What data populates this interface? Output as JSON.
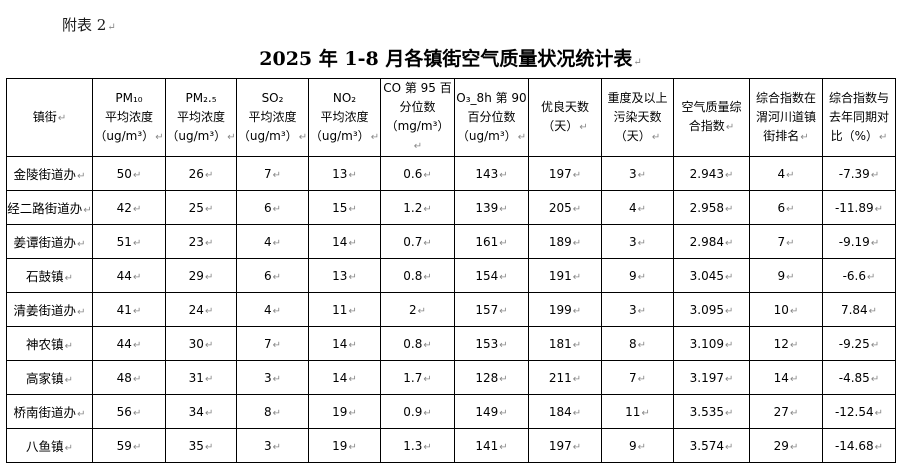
{
  "appendix_label": "附表 2",
  "title": "2025 年 1-8 月各镇街空气质量状况统计表",
  "table": {
    "headers": [
      [
        "镇街"
      ],
      [
        "PM₁₀",
        "平均浓度",
        "（ug/m³）"
      ],
      [
        "PM₂.₅",
        "平均浓度",
        "（ug/m³）"
      ],
      [
        "SO₂",
        "平均浓度",
        "（ug/m³）"
      ],
      [
        "NO₂",
        "平均浓度",
        "（ug/m³）"
      ],
      [
        "CO 第 95 百",
        "分位数",
        "（mg/m³）"
      ],
      [
        "O₃_8h 第 90",
        "百分位数",
        "（ug/m³）"
      ],
      [
        "优良天数",
        "（天）"
      ],
      [
        "重度及以上",
        "污染天数",
        "（天）"
      ],
      [
        "空气质量综",
        "合指数"
      ],
      [
        "综合指数在",
        "渭河川道镇",
        "街排名"
      ],
      [
        "综合指数与",
        "去年同期对",
        "比（%）"
      ]
    ],
    "rows": [
      [
        "金陵街道办",
        "50",
        "26",
        "7",
        "13",
        "0.6",
        "143",
        "197",
        "3",
        "2.943",
        "4",
        "-7.39"
      ],
      [
        "经二路街道办",
        "42",
        "25",
        "6",
        "15",
        "1.2",
        "139",
        "205",
        "4",
        "2.958",
        "6",
        "-11.89"
      ],
      [
        "姜谭街道办",
        "51",
        "23",
        "4",
        "14",
        "0.7",
        "161",
        "189",
        "3",
        "2.984",
        "7",
        "-9.19"
      ],
      [
        "石鼓镇",
        "44",
        "29",
        "6",
        "13",
        "0.8",
        "154",
        "191",
        "9",
        "3.045",
        "9",
        "-6.6"
      ],
      [
        "清姜街道办",
        "41",
        "24",
        "4",
        "11",
        "2",
        "157",
        "199",
        "3",
        "3.095",
        "10",
        "7.84"
      ],
      [
        "神农镇",
        "44",
        "30",
        "7",
        "14",
        "0.8",
        "153",
        "181",
        "8",
        "3.109",
        "12",
        "-9.25"
      ],
      [
        "高家镇",
        "48",
        "31",
        "3",
        "14",
        "1.7",
        "128",
        "211",
        "7",
        "3.197",
        "14",
        "-4.85"
      ],
      [
        "桥南街道办",
        "56",
        "34",
        "8",
        "19",
        "0.9",
        "149",
        "184",
        "11",
        "3.535",
        "27",
        "-12.54"
      ],
      [
        "八鱼镇",
        "59",
        "35",
        "3",
        "19",
        "1.3",
        "141",
        "197",
        "9",
        "3.574",
        "29",
        "-14.68"
      ]
    ]
  }
}
